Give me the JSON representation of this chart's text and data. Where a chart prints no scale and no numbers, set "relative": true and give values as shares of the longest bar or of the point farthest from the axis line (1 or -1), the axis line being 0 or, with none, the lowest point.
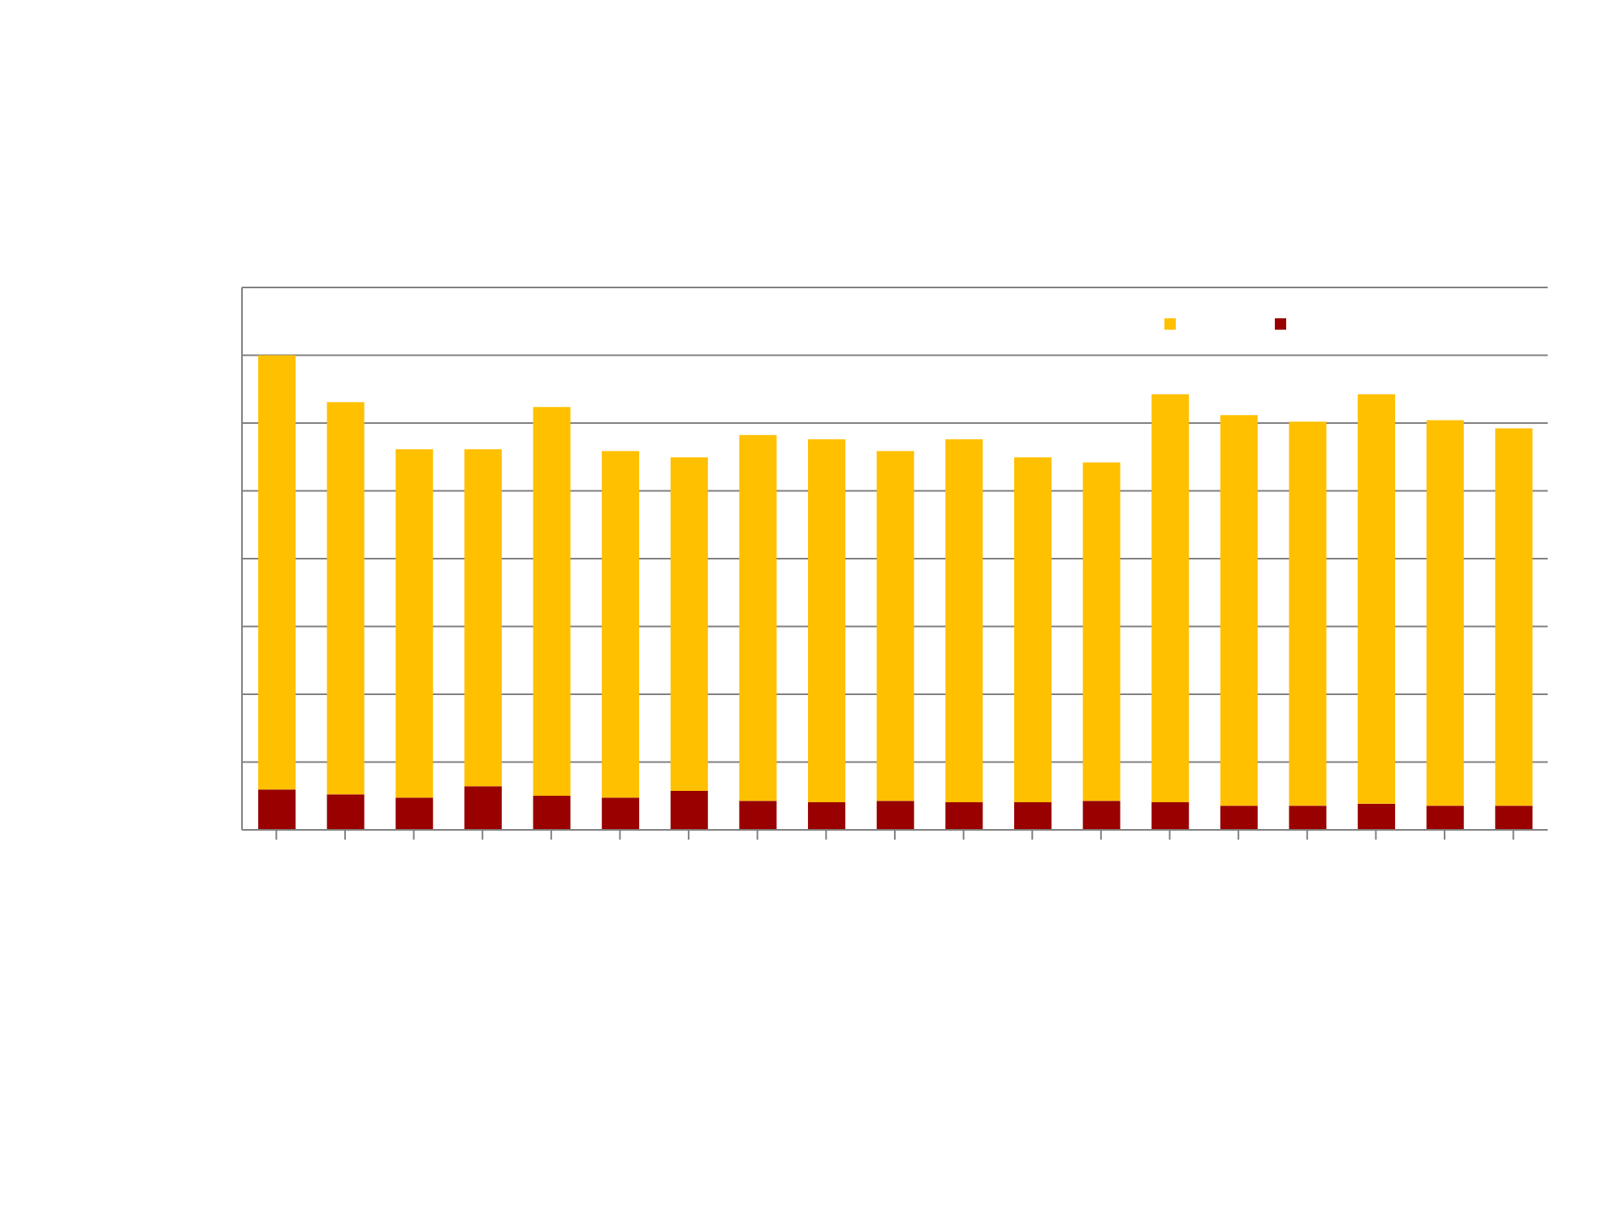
{
  "chart_data": {
    "type": "bar",
    "stacked": true,
    "relative": true,
    "grid": "y",
    "categories": [
      null,
      null,
      null,
      null,
      null,
      null,
      null,
      null,
      null,
      null,
      null,
      null,
      null,
      null,
      null,
      null,
      null,
      null,
      null
    ],
    "series": [
      {
        "color": "#990000",
        "values": [
          0.085,
          0.075,
          0.068,
          0.092,
          0.072,
          0.068,
          0.082,
          0.061,
          0.058,
          0.061,
          0.058,
          0.058,
          0.061,
          0.058,
          0.051,
          0.051,
          0.055,
          0.051,
          0.051
        ]
      },
      {
        "color": "#ffc000",
        "values": [
          0.915,
          0.826,
          0.734,
          0.71,
          0.819,
          0.73,
          0.703,
          0.771,
          0.765,
          0.737,
          0.765,
          0.727,
          0.713,
          0.86,
          0.823,
          0.809,
          0.863,
          0.812,
          0.795
        ]
      }
    ]
  }
}
